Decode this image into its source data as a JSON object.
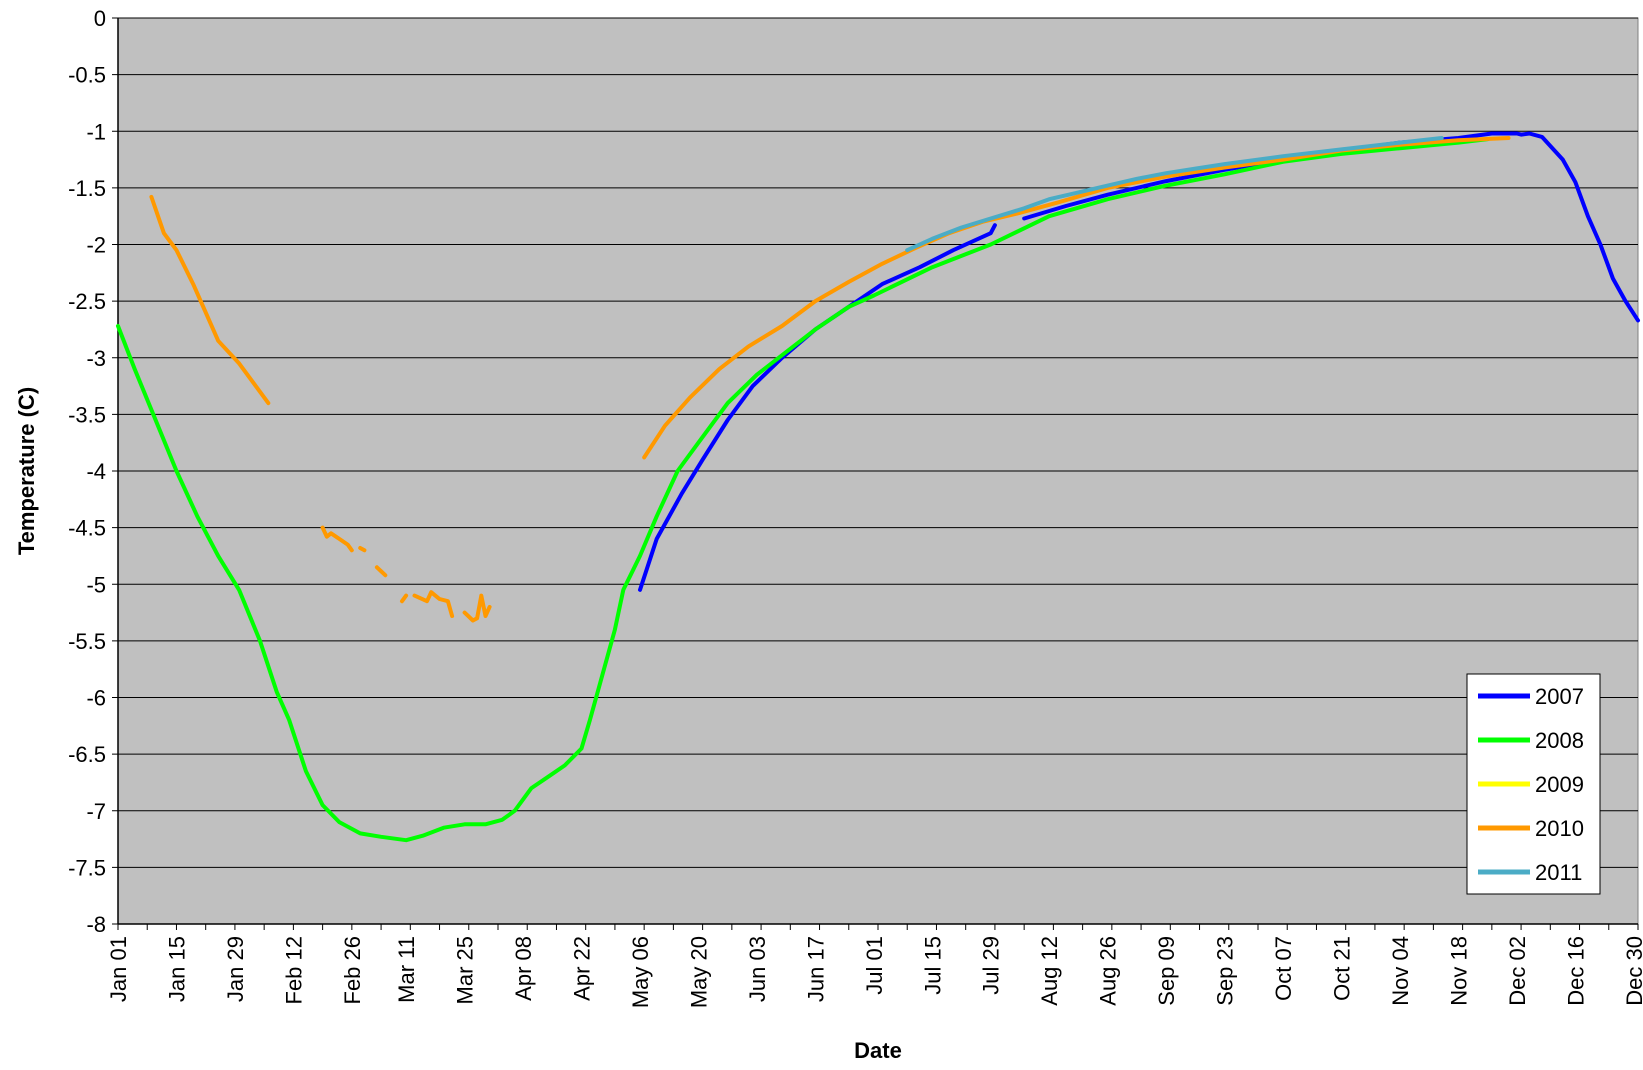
{
  "chart_data": {
    "type": "line",
    "title": "",
    "xlabel": "Date",
    "ylabel": "Temperature (C)",
    "ylim": [
      -8,
      0
    ],
    "yticks": [
      "0",
      "-0.5",
      "-1",
      "-1.5",
      "-2",
      "-2.5",
      "-3",
      "-3.5",
      "-4",
      "-4.5",
      "-5",
      "-5.5",
      "-6",
      "-6.5",
      "-7",
      "-7.5",
      "-8"
    ],
    "xlim": [
      "Jan 01",
      "Dec 31"
    ],
    "xtick_labels": [
      "Jan 01",
      "Jan 15",
      "Jan 29",
      "Feb 12",
      "Feb 26",
      "Mar 11",
      "Mar 25",
      "Apr 08",
      "Apr 22",
      "May 06",
      "May 20",
      "Jun 03",
      "Jun 17",
      "Jul 01",
      "Jul 15",
      "Jul 29",
      "Aug 12",
      "Aug 26",
      "Sep 09",
      "Sep 23",
      "Oct 07",
      "Oct 21",
      "Nov 04",
      "Nov 18",
      "Dec 02",
      "Dec 16",
      "Dec 30"
    ],
    "grid": "horizontal",
    "background_color": "#C0C0C0",
    "legend_position": "bottom-right",
    "series": [
      {
        "name": "2007",
        "color": "#0000FF",
        "segments": [
          [
            [
              "May 06",
              -5.05
            ],
            [
              "May 10",
              -4.6
            ],
            [
              "May 16",
              -4.2
            ],
            [
              "May 21",
              -3.9
            ],
            [
              "May 27",
              -3.55
            ],
            [
              "Jun 02",
              -3.25
            ],
            [
              "Jun 09",
              -3.0
            ],
            [
              "Jun 17",
              -2.75
            ],
            [
              "Jun 25",
              -2.55
            ],
            [
              "Jul 03",
              -2.35
            ],
            [
              "Jul 12",
              -2.2
            ],
            [
              "Jul 20",
              -2.05
            ],
            [
              "Jul 29",
              -1.9
            ],
            [
              "Jul 30",
              -1.83
            ]
          ],
          [
            [
              "Aug 06",
              -1.77
            ],
            [
              "Aug 16",
              -1.66
            ],
            [
              "Aug 26",
              -1.56
            ],
            [
              "Sep 09",
              -1.44
            ],
            [
              "Sep 23",
              -1.34
            ],
            [
              "Oct 07",
              -1.25
            ],
            [
              "Oct 21",
              -1.17
            ],
            [
              "Nov 04",
              -1.1
            ],
            [
              "Nov 18",
              -1.06
            ],
            [
              "Nov 26",
              -1.02
            ],
            [
              "Dec 02",
              -1.02
            ],
            [
              "Dec 03",
              -1.03
            ],
            [
              "Dec 05",
              -1.02
            ],
            [
              "Dec 08",
              -1.05
            ],
            [
              "Dec 13",
              -1.25
            ],
            [
              "Dec 16",
              -1.45
            ],
            [
              "Dec 19",
              -1.75
            ],
            [
              "Dec 22",
              -2.0
            ],
            [
              "Dec 25",
              -2.3
            ],
            [
              "Dec 28",
              -2.5
            ],
            [
              "Dec 31",
              -2.67
            ]
          ]
        ]
      },
      {
        "name": "2008",
        "color": "#00FF00",
        "segments": [
          [
            [
              "Jan 01",
              -2.72
            ],
            [
              "Jan 05",
              -3.1
            ],
            [
              "Jan 10",
              -3.55
            ],
            [
              "Jan 15",
              -4.0
            ],
            [
              "Jan 20",
              -4.4
            ],
            [
              "Jan 25",
              -4.75
            ],
            [
              "Jan 30",
              -5.05
            ],
            [
              "Feb 04",
              -5.5
            ],
            [
              "Feb 08",
              -5.95
            ],
            [
              "Feb 11",
              -6.2
            ],
            [
              "Feb 15",
              -6.65
            ],
            [
              "Feb 19",
              -6.95
            ],
            [
              "Feb 23",
              -7.1
            ],
            [
              "Feb 28",
              -7.2
            ],
            [
              "Mar 05",
              -7.23
            ],
            [
              "Mar 11",
              -7.26
            ],
            [
              "Mar 15",
              -7.22
            ],
            [
              "Mar 20",
              -7.15
            ],
            [
              "Mar 25",
              -7.12
            ],
            [
              "Mar 30",
              -7.12
            ],
            [
              "Apr 03",
              -7.08
            ],
            [
              "Apr 06",
              -7.0
            ],
            [
              "Apr 10",
              -6.8
            ],
            [
              "Apr 14",
              -6.7
            ],
            [
              "Apr 18",
              -6.6
            ],
            [
              "Apr 22",
              -6.45
            ],
            [
              "Apr 24",
              -6.2
            ],
            [
              "Apr 27",
              -5.8
            ],
            [
              "Apr 30",
              -5.4
            ],
            [
              "May 02",
              -5.05
            ],
            [
              "May 06",
              -4.75
            ],
            [
              "May 10",
              -4.4
            ],
            [
              "May 15",
              -4.0
            ],
            [
              "May 20",
              -3.75
            ],
            [
              "May 27",
              -3.4
            ],
            [
              "Jun 03",
              -3.15
            ],
            [
              "Jun 10",
              -2.95
            ],
            [
              "Jun 17",
              -2.75
            ],
            [
              "Jun 25",
              -2.55
            ],
            [
              "Jul 01",
              -2.45
            ],
            [
              "Jul 15",
              -2.2
            ],
            [
              "Jul 29",
              -2.0
            ],
            [
              "Aug 12",
              -1.75
            ],
            [
              "Aug 26",
              -1.6
            ],
            [
              "Sep 09",
              -1.48
            ],
            [
              "Sep 23",
              -1.38
            ],
            [
              "Oct 07",
              -1.27
            ],
            [
              "Oct 21",
              -1.2
            ],
            [
              "Nov 04",
              -1.15
            ],
            [
              "Nov 18",
              -1.1
            ],
            [
              "Nov 25",
              -1.07
            ]
          ]
        ]
      },
      {
        "name": "2009",
        "color": "#FFFF00",
        "segments": []
      },
      {
        "name": "2010",
        "color": "#FF9900",
        "segments": [
          [
            [
              "Jan 09",
              -1.58
            ],
            [
              "Jan 12",
              -1.9
            ],
            [
              "Jan 15",
              -2.05
            ],
            [
              "Jan 19",
              -2.35
            ],
            [
              "Jan 25",
              -2.85
            ],
            [
              "Jan 30",
              -3.05
            ],
            [
              "Feb 06",
              -3.4
            ]
          ],
          [
            [
              "Feb 19",
              -4.5
            ],
            [
              "Feb 20",
              -4.58
            ],
            [
              "Feb 21",
              -4.55
            ],
            [
              "Feb 23",
              -4.6
            ],
            [
              "Feb 25",
              -4.65
            ],
            [
              "Feb 26",
              -4.7
            ]
          ],
          [
            [
              "Feb 28",
              -4.68
            ],
            [
              "Mar 01",
              -4.7
            ]
          ],
          [
            [
              "Mar 04",
              -4.85
            ],
            [
              "Mar 06",
              -4.92
            ]
          ],
          [
            [
              "Mar 10",
              -5.15
            ],
            [
              "Mar 11",
              -5.1
            ]
          ],
          [
            [
              "Mar 13",
              -5.1
            ],
            [
              "Mar 16",
              -5.15
            ],
            [
              "Mar 17",
              -5.07
            ],
            [
              "Mar 19",
              -5.13
            ],
            [
              "Mar 21",
              -5.15
            ],
            [
              "Mar 22",
              -5.28
            ]
          ],
          [
            [
              "Mar 25",
              -5.25
            ],
            [
              "Mar 27",
              -5.32
            ],
            [
              "Mar 28",
              -5.3
            ],
            [
              "Mar 29",
              -5.1
            ],
            [
              "Mar 30",
              -5.28
            ],
            [
              "Mar 31",
              -5.2
            ]
          ],
          [
            [
              "May 07",
              -3.88
            ],
            [
              "May 12",
              -3.6
            ],
            [
              "May 18",
              -3.35
            ],
            [
              "May 25",
              -3.1
            ],
            [
              "Jun 01",
              -2.9
            ],
            [
              "Jun 09",
              -2.72
            ],
            [
              "Jun 17",
              -2.5
            ],
            [
              "Jun 25",
              -2.33
            ],
            [
              "Jul 03",
              -2.17
            ],
            [
              "Jul 11",
              -2.03
            ],
            [
              "Jul 19",
              -1.9
            ],
            [
              "Jul 27",
              -1.8
            ],
            [
              "Aug 05",
              -1.72
            ],
            [
              "Aug 14",
              -1.63
            ],
            [
              "Aug 26",
              -1.5
            ],
            [
              "Sep 09",
              -1.4
            ],
            [
              "Sep 23",
              -1.32
            ],
            [
              "Oct 07",
              -1.25
            ],
            [
              "Oct 21",
              -1.17
            ],
            [
              "Nov 04",
              -1.12
            ],
            [
              "Nov 18",
              -1.08
            ],
            [
              "Nov 30",
              -1.06
            ]
          ]
        ]
      },
      {
        "name": "2011",
        "color": "#4BACC6",
        "segments": [
          [
            [
              "Jul 09",
              -2.05
            ],
            [
              "Jul 15",
              -1.95
            ],
            [
              "Jul 22",
              -1.85
            ],
            [
              "Jul 29",
              -1.77
            ],
            [
              "Aug 06",
              -1.68
            ],
            [
              "Aug 12",
              -1.6
            ],
            [
              "Aug 19",
              -1.54
            ],
            [
              "Aug 26",
              -1.48
            ],
            [
              "Sep 02",
              -1.42
            ],
            [
              "Sep 09",
              -1.37
            ],
            [
              "Sep 16",
              -1.33
            ],
            [
              "Sep 23",
              -1.29
            ],
            [
              "Oct 07",
              -1.22
            ],
            [
              "Oct 21",
              -1.16
            ],
            [
              "Nov 04",
              -1.1
            ],
            [
              "Nov 14",
              -1.06
            ]
          ]
        ]
      }
    ]
  }
}
